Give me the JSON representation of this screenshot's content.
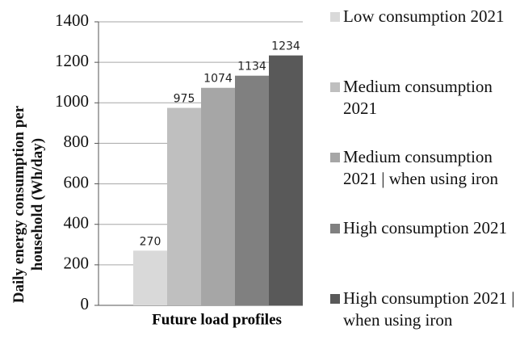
{
  "chart_data": {
    "type": "bar",
    "y_label": "Daily energy consumption per household (Wh/day)",
    "categories": [
      "Future load profiles"
    ],
    "series": [
      {
        "name": "Low consumption 2021",
        "color": "#d9d9d9",
        "values": [
          270
        ]
      },
      {
        "name": "Medium consumption 2021",
        "color": "#bfbfbf",
        "values": [
          975
        ]
      },
      {
        "name": "Medium consumption 2021 | when using iron",
        "color": "#a6a6a6",
        "values": [
          1074
        ]
      },
      {
        "name": "High consumption 2021",
        "color": "#808080",
        "values": [
          1134
        ]
      },
      {
        "name": "High consumption 2021 | when using iron",
        "color": "#595959",
        "values": [
          1234
        ]
      }
    ],
    "ylim": [
      0,
      1400
    ],
    "yticks": [
      0,
      200,
      400,
      600,
      800,
      1000,
      1200,
      1400
    ],
    "grid": true
  }
}
